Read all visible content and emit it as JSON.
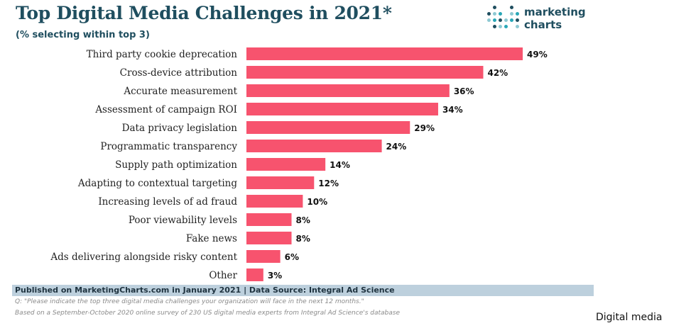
{
  "chart_data": {
    "type": "bar",
    "orientation": "horizontal",
    "title": "Top Digital Media Challenges in 2021*",
    "subtitle": "(% selecting within top 3)",
    "categories": [
      "Third party cookie deprecation",
      "Cross-device attribution",
      "Accurate measurement",
      "Assessment of campaign ROI",
      "Data privacy legislation",
      "Programmatic transparency",
      "Supply path optimization",
      "Adapting to contextual targeting",
      "Increasing levels of ad fraud",
      "Poor viewability levels",
      "Fake news",
      "Ads delivering alongside risky content",
      "Other"
    ],
    "values": [
      49,
      42,
      36,
      34,
      29,
      24,
      14,
      12,
      10,
      8,
      8,
      6,
      3
    ],
    "value_suffix": "%",
    "xlim": [
      0,
      50
    ],
    "bar_color": "#f7536e",
    "grid": false,
    "legend": "none"
  },
  "logo": {
    "line1": "marketing",
    "line2": "charts"
  },
  "colors": {
    "title": "#1f4e5f",
    "footer_bar": "#bdd0dd",
    "logo_dots": [
      "#2aa8b8",
      "#1f4e5f",
      "#8ec9d3"
    ]
  },
  "footer": {
    "published": "Published on MarketingCharts.com in January 2021 | Data Source: Integral Ad Science",
    "question": "Q: \"Please indicate the top three digital media challenges your organization will face in the next 12 months.\"",
    "methodology": "Based on a September-October 2020 online survey of 230 US digital media experts from Integral Ad Science's database"
  },
  "corner_label": "Digital media"
}
